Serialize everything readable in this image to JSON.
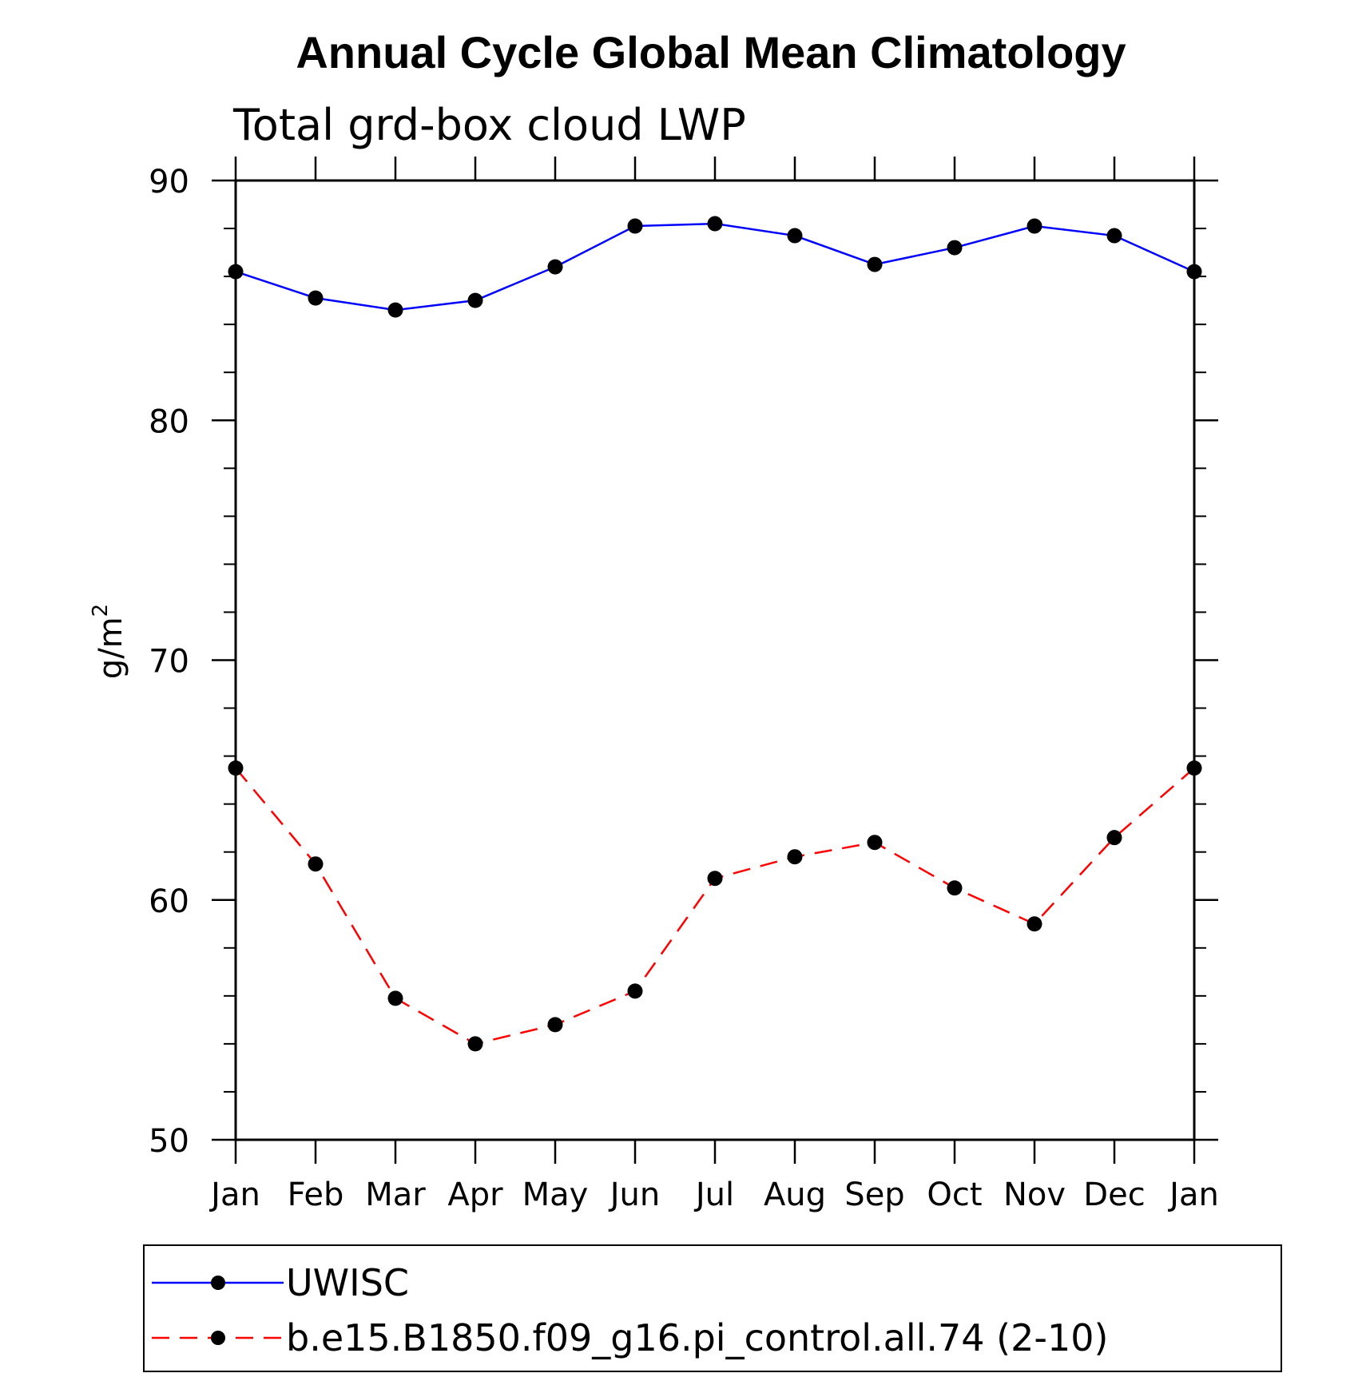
{
  "chart_data": {
    "type": "line",
    "title": "Annual Cycle Global Mean Climatology",
    "subtitle": "Total grd-box cloud LWP",
    "ylabel": "g/m",
    "ylabel_superscript": "2",
    "xlabel": "",
    "categories": [
      "Jan",
      "Feb",
      "Mar",
      "Apr",
      "May",
      "Jun",
      "Jul",
      "Aug",
      "Sep",
      "Oct",
      "Nov",
      "Dec",
      "Jan"
    ],
    "ylim": [
      50,
      90
    ],
    "yticks": [
      50,
      60,
      70,
      80,
      90
    ],
    "grid": false,
    "legend_position": "bottom",
    "series": [
      {
        "name": "UWISC",
        "color": "#0000ff",
        "style": "solid",
        "marker": "circle",
        "values": [
          86.2,
          85.1,
          84.6,
          85.0,
          86.4,
          88.1,
          88.2,
          87.7,
          86.5,
          87.2,
          88.1,
          87.7,
          86.2
        ]
      },
      {
        "name": "b.e15.B1850.f09_g16.pi_control.all.74 (2-10)",
        "color": "#ff0000",
        "style": "dashed",
        "marker": "circle",
        "values": [
          65.5,
          61.5,
          55.9,
          54.0,
          54.8,
          56.2,
          60.9,
          61.8,
          62.4,
          60.5,
          59.0,
          62.6,
          65.5
        ]
      }
    ]
  }
}
